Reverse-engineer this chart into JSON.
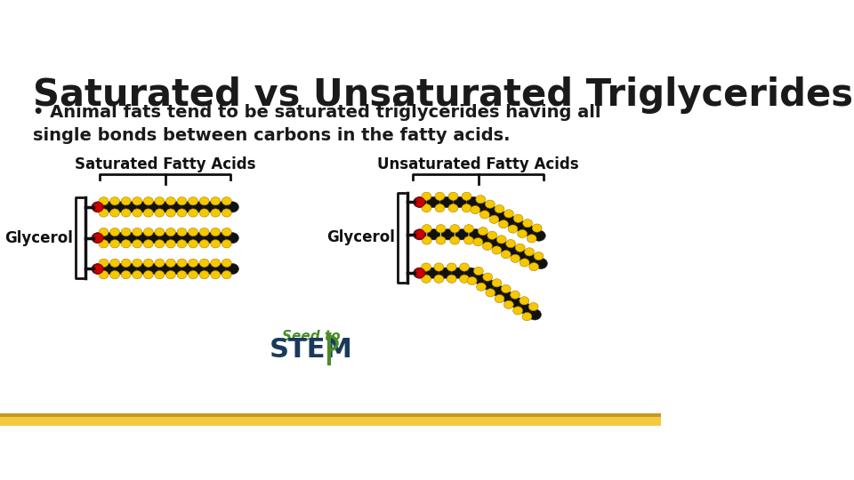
{
  "title": "Saturated vs Unsaturated Triglycerides",
  "bullet_text": "Animal fats tend to be saturated triglycerides having all\nsingle bonds between carbons in the fatty acids.",
  "label_saturated": "Saturated Fatty Acids",
  "label_unsaturated": "Unsaturated Fatty Acids",
  "label_glycerol_left": "Glycerol",
  "label_glycerol_right": "Glycerol",
  "background_color": "#ffffff",
  "title_color": "#1a1a1a",
  "bullet_color": "#1a1a1a",
  "bar_bottom_color1": "#f5c842",
  "bar_bottom_color2": "#c89820",
  "stem_green": "#4a8c2a",
  "stem_dark": "#1a3a5c",
  "label_color": "#1a1a1a",
  "black_atom": "#111111",
  "yellow_atom": "#f5c800",
  "yellow_edge": "#b08000",
  "red_atom": "#cc0000",
  "red_edge": "#880000"
}
